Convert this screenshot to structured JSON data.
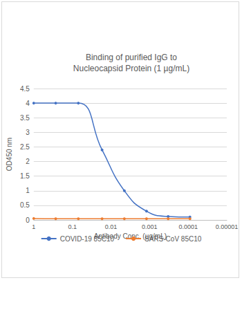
{
  "chart_data": {
    "type": "line",
    "title": "Binding of purified IgG to\nNucleocapsid Protein (1 µg/mL)",
    "x_label": "Antibody Conc. (µg/mL)",
    "y_label": "OD450 nm",
    "log": "x",
    "x": [
      1,
      0.27,
      0.07,
      0.017,
      0.0045,
      0.0012,
      0.00033,
      9e-05
    ],
    "series": [
      {
        "name": "COVID-19 85C10",
        "color": "#4472c4",
        "marker": "circle",
        "line_style": "solid",
        "values": [
          4.0,
          4.0,
          4.0,
          2.4,
          1.0,
          0.3,
          0.12,
          0.1
        ]
      },
      {
        "name": "SARS-CoV 85C10",
        "color": "#ed7d31",
        "marker": "circle",
        "line_style": "solid",
        "values": [
          0.05,
          0.04,
          0.04,
          0.04,
          0.04,
          0.04,
          0.04,
          0.04
        ]
      }
    ],
    "xlim": [
      1,
      1e-05
    ],
    "xticks": [
      1,
      0.1,
      0.01,
      0.001,
      0.0001,
      1e-05
    ],
    "ylim": [
      0,
      4.5
    ],
    "yticks": [
      0,
      0.5,
      1,
      1.5,
      2,
      2.5,
      3,
      3.5,
      4,
      4.5
    ],
    "grid": true,
    "legend": "bottom"
  }
}
